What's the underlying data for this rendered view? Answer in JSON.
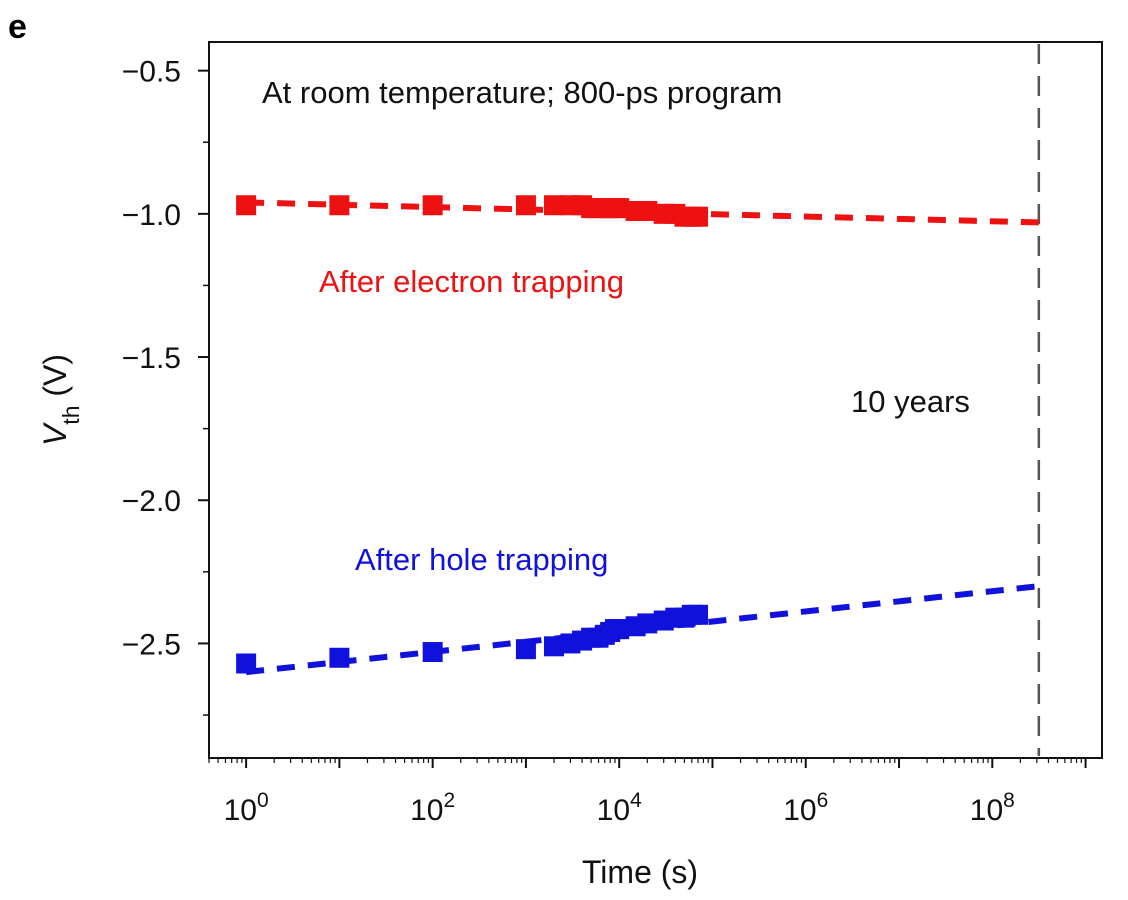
{
  "panel_label": "e",
  "chart_data": {
    "type": "scatter",
    "title": "",
    "xlabel": "Time (s)",
    "ylabel_main": "V",
    "ylabel_sub": "th",
    "ylabel_unit": " (V)",
    "xscale": "log",
    "xlim": [
      0.4,
      1500000000
    ],
    "ylim": [
      -2.9,
      -0.4
    ],
    "grid": false,
    "x_major_ticks": [
      {
        "value": 1,
        "base": "10",
        "exp": "0"
      },
      {
        "value": 100,
        "base": "10",
        "exp": "2"
      },
      {
        "value": 10000,
        "base": "10",
        "exp": "4"
      },
      {
        "value": 1000000,
        "base": "10",
        "exp": "6"
      },
      {
        "value": 100000000,
        "base": "10",
        "exp": "8"
      }
    ],
    "y_major_ticks": [
      {
        "value": -0.5,
        "label": "−0.5"
      },
      {
        "value": -1.0,
        "label": "−1.0"
      },
      {
        "value": -1.5,
        "label": "−1.5"
      },
      {
        "value": -2.0,
        "label": "−2.0"
      },
      {
        "value": -2.5,
        "label": "−2.5"
      }
    ],
    "y_minor_ticks": [
      -0.75,
      -1.25,
      -1.75,
      -2.25,
      -2.75
    ],
    "annotations": {
      "condition": "At room temperature; 800-ps program",
      "ten_years": "10 years",
      "ten_years_x": 315360000
    },
    "series": [
      {
        "name": "After electron trapping",
        "color": "#ee1111",
        "measured": [
          {
            "x": 1,
            "y": -0.97
          },
          {
            "x": 10,
            "y": -0.97
          },
          {
            "x": 100,
            "y": -0.97
          },
          {
            "x": 1000,
            "y": -0.97
          },
          {
            "x": 2000,
            "y": -0.97
          },
          {
            "x": 3000,
            "y": -0.97
          },
          {
            "x": 4000,
            "y": -0.97
          },
          {
            "x": 5000,
            "y": -0.98
          },
          {
            "x": 6000,
            "y": -0.98
          },
          {
            "x": 7000,
            "y": -0.98
          },
          {
            "x": 8000,
            "y": -0.98
          },
          {
            "x": 9000,
            "y": -0.98
          },
          {
            "x": 10000,
            "y": -0.98
          },
          {
            "x": 15000,
            "y": -0.99
          },
          {
            "x": 20000,
            "y": -0.99
          },
          {
            "x": 30000,
            "y": -1.0
          },
          {
            "x": 40000,
            "y": -1.0
          },
          {
            "x": 50000,
            "y": -1.01
          },
          {
            "x": 60000,
            "y": -1.01
          },
          {
            "x": 70000,
            "y": -1.01
          }
        ],
        "fit": [
          {
            "x": 1,
            "y": -0.96
          },
          {
            "x": 315360000,
            "y": -1.03
          }
        ]
      },
      {
        "name": "After hole trapping",
        "color": "#1111dd",
        "measured": [
          {
            "x": 1,
            "y": -2.57
          },
          {
            "x": 10,
            "y": -2.55
          },
          {
            "x": 100,
            "y": -2.53
          },
          {
            "x": 1000,
            "y": -2.52
          },
          {
            "x": 2000,
            "y": -2.51
          },
          {
            "x": 3000,
            "y": -2.5
          },
          {
            "x": 4000,
            "y": -2.49
          },
          {
            "x": 5000,
            "y": -2.48
          },
          {
            "x": 6000,
            "y": -2.48
          },
          {
            "x": 7000,
            "y": -2.47
          },
          {
            "x": 8000,
            "y": -2.46
          },
          {
            "x": 9000,
            "y": -2.45
          },
          {
            "x": 10000,
            "y": -2.45
          },
          {
            "x": 15000,
            "y": -2.44
          },
          {
            "x": 20000,
            "y": -2.43
          },
          {
            "x": 30000,
            "y": -2.42
          },
          {
            "x": 40000,
            "y": -2.41
          },
          {
            "x": 50000,
            "y": -2.41
          },
          {
            "x": 60000,
            "y": -2.4
          },
          {
            "x": 70000,
            "y": -2.4
          }
        ],
        "fit": [
          {
            "x": 1,
            "y": -2.6
          },
          {
            "x": 315360000,
            "y": -2.3
          }
        ]
      }
    ]
  }
}
